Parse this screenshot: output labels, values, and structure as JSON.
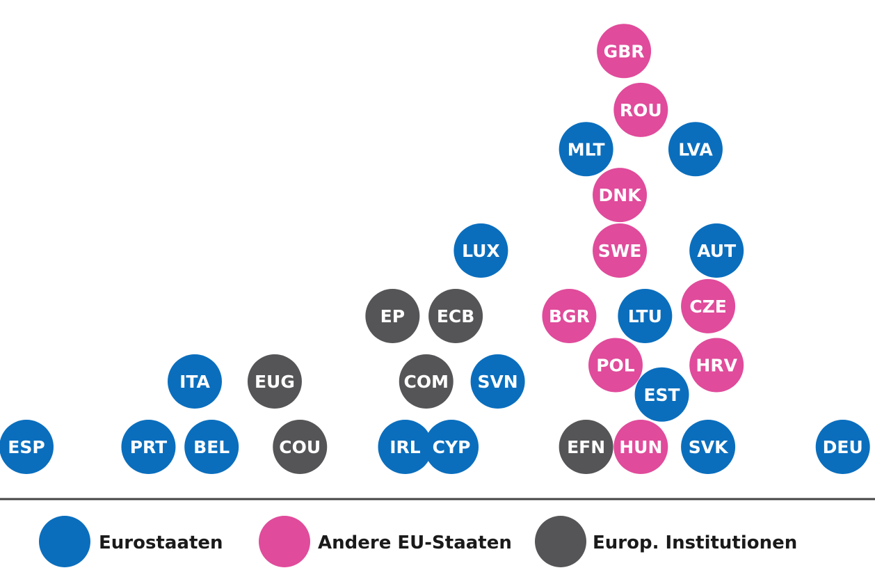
{
  "colors": {
    "euro": "#0a6ebd",
    "other_eu": "#e04b9b",
    "institution": "#555557",
    "baseline": "#444444"
  },
  "legend": [
    {
      "group": "euro",
      "label": "Eurostaaten"
    },
    {
      "group": "other_eu",
      "label": "Andere EU-Staaten"
    },
    {
      "group": "institution",
      "label": "Europ. Institutionen"
    }
  ],
  "chart_data": {
    "type": "scatter",
    "title": "",
    "xlabel": "",
    "ylabel": "",
    "grid": false,
    "legend_position": "bottom",
    "points": [
      {
        "label": "ESP",
        "group": "euro",
        "x": 0.0,
        "y": 0.0
      },
      {
        "label": "PRT",
        "group": "euro",
        "x": 1.45,
        "y": 0.0
      },
      {
        "label": "BEL",
        "group": "euro",
        "x": 2.2,
        "y": 0.0
      },
      {
        "label": "ITA",
        "group": "euro",
        "x": 2.0,
        "y": 1.0
      },
      {
        "label": "EUG",
        "group": "institution",
        "x": 2.95,
        "y": 1.0
      },
      {
        "label": "COU",
        "group": "institution",
        "x": 3.25,
        "y": 0.0
      },
      {
        "label": "IRL",
        "group": "euro",
        "x": 4.5,
        "y": 0.0
      },
      {
        "label": "CYP",
        "group": "euro",
        "x": 5.05,
        "y": 0.0
      },
      {
        "label": "COM",
        "group": "institution",
        "x": 4.75,
        "y": 1.0
      },
      {
        "label": "SVN",
        "group": "euro",
        "x": 5.6,
        "y": 1.0
      },
      {
        "label": "EP",
        "group": "institution",
        "x": 4.35,
        "y": 2.0
      },
      {
        "label": "ECB",
        "group": "institution",
        "x": 5.1,
        "y": 2.0
      },
      {
        "label": "LUX",
        "group": "euro",
        "x": 5.4,
        "y": 3.0
      },
      {
        "label": "EFN",
        "group": "institution",
        "x": 6.65,
        "y": 0.0
      },
      {
        "label": "HUN",
        "group": "other_eu",
        "x": 7.3,
        "y": 0.0
      },
      {
        "label": "EST",
        "group": "euro",
        "x": 7.55,
        "y": 0.8
      },
      {
        "label": "POL",
        "group": "other_eu",
        "x": 7.0,
        "y": 1.25
      },
      {
        "label": "BGR",
        "group": "other_eu",
        "x": 6.45,
        "y": 2.0
      },
      {
        "label": "LTU",
        "group": "euro",
        "x": 7.35,
        "y": 2.0
      },
      {
        "label": "SWE",
        "group": "other_eu",
        "x": 7.05,
        "y": 3.0
      },
      {
        "label": "DNK",
        "group": "other_eu",
        "x": 7.05,
        "y": 3.85
      },
      {
        "label": "MLT",
        "group": "euro",
        "x": 6.65,
        "y": 4.55
      },
      {
        "label": "ROU",
        "group": "other_eu",
        "x": 7.3,
        "y": 5.15
      },
      {
        "label": "LVA",
        "group": "euro",
        "x": 7.95,
        "y": 4.55
      },
      {
        "label": "GBR",
        "group": "other_eu",
        "x": 7.1,
        "y": 6.05
      },
      {
        "label": "AUT",
        "group": "euro",
        "x": 8.2,
        "y": 3.0
      },
      {
        "label": "CZE",
        "group": "other_eu",
        "x": 8.1,
        "y": 2.15
      },
      {
        "label": "HRV",
        "group": "other_eu",
        "x": 8.2,
        "y": 1.25
      },
      {
        "label": "SVK",
        "group": "euro",
        "x": 8.1,
        "y": 0.0
      },
      {
        "label": "DEU",
        "group": "euro",
        "x": 9.7,
        "y": 0.0
      }
    ]
  }
}
